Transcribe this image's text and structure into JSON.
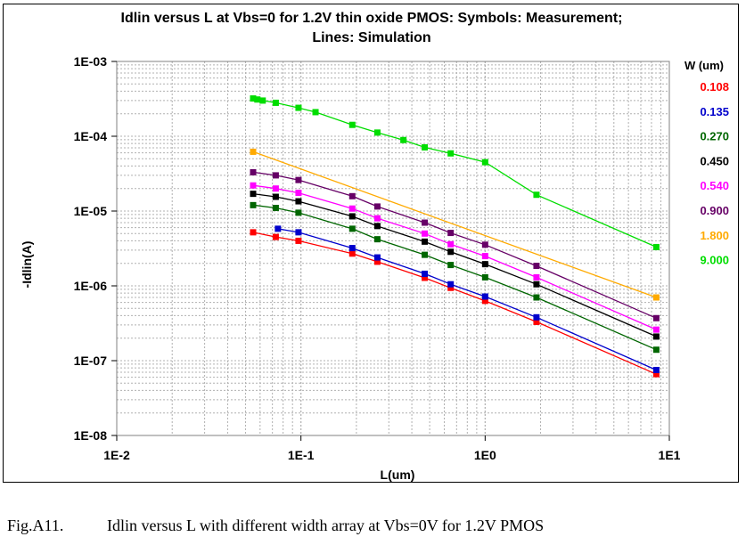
{
  "chart_data": {
    "type": "scatter",
    "title_line1": "Idlin versus L at Vbs=0 for 1.2V thin oxide PMOS: Symbols: Measurement;",
    "title_line2": "Lines: Simulation",
    "xlabel": "L(um)",
    "ylabel": "-Idlin(A)",
    "x_scale": "log",
    "y_scale": "log",
    "xlim": [
      0.01,
      10
    ],
    "ylim": [
      1e-08,
      0.001
    ],
    "grid": true,
    "x_ticks": [
      "1E-2",
      "1E-1",
      "1E0",
      "1E1"
    ],
    "y_ticks": [
      "1E-03",
      "1E-04",
      "1E-05",
      "1E-06",
      "1E-07",
      "1E-08"
    ],
    "legend_title": "W (um)",
    "legend_position": "right",
    "series": [
      {
        "name": "0.108",
        "color": "#ff0000",
        "x": [
          0.055,
          0.073,
          0.097,
          0.19,
          0.26,
          0.47,
          0.65,
          1.0,
          1.9,
          8.5
        ],
        "y": [
          5.2e-06,
          4.5e-06,
          4e-06,
          2.7e-06,
          2.1e-06,
          1.28e-06,
          9.4e-07,
          6.3e-07,
          3.3e-07,
          6.6e-08
        ]
      },
      {
        "name": "0.135",
        "color": "#0000cc",
        "x": [
          0.075,
          0.097,
          0.19,
          0.26,
          0.47,
          0.65,
          1.0,
          1.9,
          8.5
        ],
        "y": [
          5.8e-06,
          5.2e-06,
          3.2e-06,
          2.4e-06,
          1.45e-06,
          1.05e-06,
          7.2e-07,
          3.8e-07,
          7.5e-08
        ]
      },
      {
        "name": "0.270",
        "color": "#006600",
        "x": [
          0.055,
          0.073,
          0.097,
          0.19,
          0.26,
          0.47,
          0.65,
          1.0,
          1.9,
          8.5
        ],
        "y": [
          1.2e-05,
          1.1e-05,
          9.5e-06,
          5.8e-06,
          4.2e-06,
          2.6e-06,
          1.9e-06,
          1.3e-06,
          7e-07,
          1.4e-07
        ]
      },
      {
        "name": "0.450",
        "color": "#000000",
        "x": [
          0.055,
          0.073,
          0.097,
          0.19,
          0.26,
          0.47,
          0.65,
          1.0,
          1.9,
          8.5
        ],
        "y": [
          1.7e-05,
          1.55e-05,
          1.35e-05,
          8.5e-06,
          6.3e-06,
          3.9e-06,
          2.85e-06,
          1.95e-06,
          1.05e-06,
          2.1e-07
        ]
      },
      {
        "name": "0.540",
        "color": "#ff00ff",
        "x": [
          0.055,
          0.073,
          0.097,
          0.19,
          0.26,
          0.47,
          0.65,
          1.0,
          1.9,
          8.5
        ],
        "y": [
          2.2e-05,
          2e-05,
          1.75e-05,
          1.08e-05,
          8e-06,
          5e-06,
          3.6e-06,
          2.5e-06,
          1.3e-06,
          2.6e-07
        ]
      },
      {
        "name": "0.900",
        "color": "#660066",
        "x": [
          0.055,
          0.073,
          0.097,
          0.19,
          0.26,
          0.47,
          0.65,
          1.0,
          1.9,
          8.5
        ],
        "y": [
          3.3e-05,
          3e-05,
          2.6e-05,
          1.58e-05,
          1.15e-05,
          7e-06,
          5.1e-06,
          3.55e-06,
          1.85e-06,
          3.7e-07
        ]
      },
      {
        "name": "1.800",
        "color": "#ffaa00",
        "x": [
          0.055,
          8.5
        ],
        "y": [
          6.2e-05,
          7e-07
        ]
      },
      {
        "name": "9.000",
        "color": "#00dd00",
        "x": [
          0.055,
          0.058,
          0.062,
          0.073,
          0.097,
          0.12,
          0.19,
          0.26,
          0.36,
          0.47,
          0.65,
          1.0,
          1.9,
          8.5
        ],
        "y": [
          0.00032,
          0.00031,
          0.0003,
          0.00028,
          0.00024,
          0.00021,
          0.000142,
          0.000112,
          8.9e-05,
          7.1e-05,
          5.9e-05,
          4.5e-05,
          1.65e-05,
          3.3e-06
        ]
      }
    ]
  },
  "caption": {
    "label": "Fig.A11.",
    "text": "Idlin versus L with different width array at Vbs=0V for 1.2V PMOS"
  }
}
